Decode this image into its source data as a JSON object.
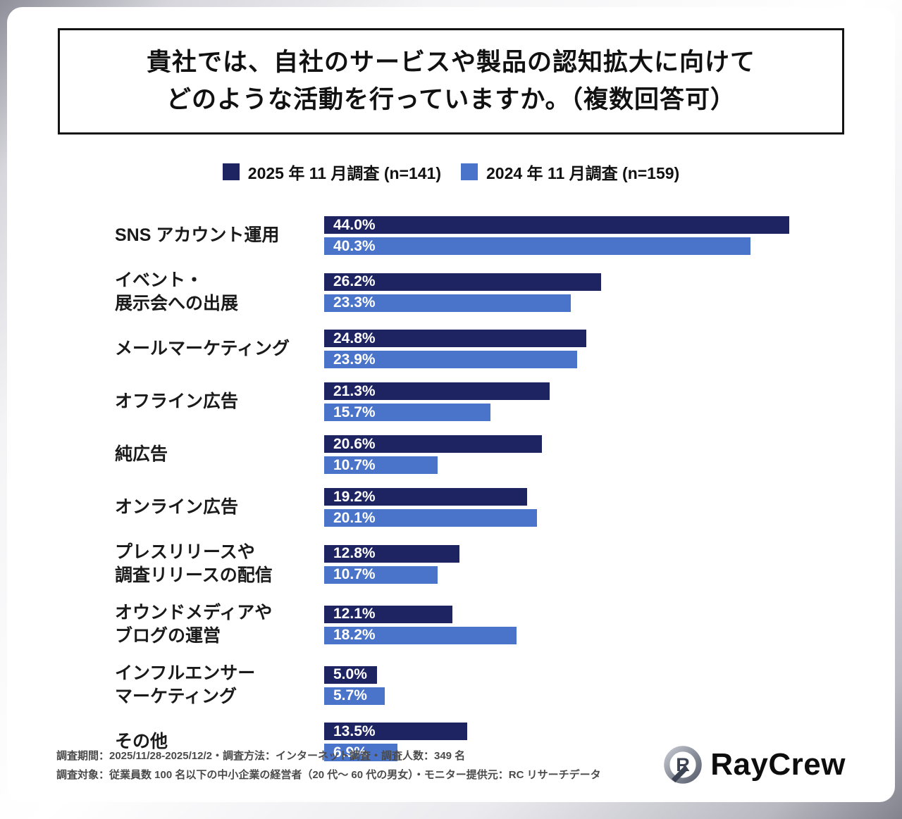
{
  "title": {
    "line1": "貴社では、自社のサービスや製品の認知拡大に向けて",
    "line2": "どのような活動を行っていますか。（複数回答可）"
  },
  "legend": {
    "items": [
      {
        "label": "2025 年 11 月調査 (n=141)",
        "color": "#1e2362"
      },
      {
        "label": "2024 年 11 月調査 (n=159)",
        "color": "#4a74c9"
      }
    ]
  },
  "chart_data": {
    "type": "bar",
    "orientation": "horizontal",
    "value_suffix": "%",
    "xlim": [
      0,
      45
    ],
    "grid": false,
    "legend_position": "top",
    "categories": [
      [
        "SNS アカウント運用"
      ],
      [
        "イベント・",
        "展示会への出展"
      ],
      [
        "メールマーケティング"
      ],
      [
        "オフライン広告"
      ],
      [
        "純広告"
      ],
      [
        "オンライン広告"
      ],
      [
        "プレスリリースや",
        "調査リリースの配信"
      ],
      [
        "オウンドメディアや",
        "ブログの運営"
      ],
      [
        "インフルエンサー",
        "マーケティング"
      ],
      [
        "その他"
      ]
    ],
    "series": [
      {
        "name": "2025 年 11 月調査 (n=141)",
        "color": "#1e2362",
        "values": [
          44.0,
          26.2,
          24.8,
          21.3,
          20.6,
          19.2,
          12.8,
          12.1,
          5.0,
          13.5
        ]
      },
      {
        "name": "2024 年 11 月調査 (n=159)",
        "color": "#4a74c9",
        "values": [
          40.3,
          23.3,
          23.9,
          15.7,
          10.7,
          20.1,
          10.7,
          18.2,
          5.7,
          6.9
        ]
      }
    ]
  },
  "footer": {
    "line1": "調査期間：2025/11/28-2025/12/2・調査方法：インターネット調査・調査人数：349 名",
    "line2": "調査対象：従業員数 100 名以下の中小企業の経営者（20 代〜 60 代の男女）・モニター提供元：RC リサーチデータ"
  },
  "logo": {
    "name": "RayCrew",
    "letter": "R"
  }
}
